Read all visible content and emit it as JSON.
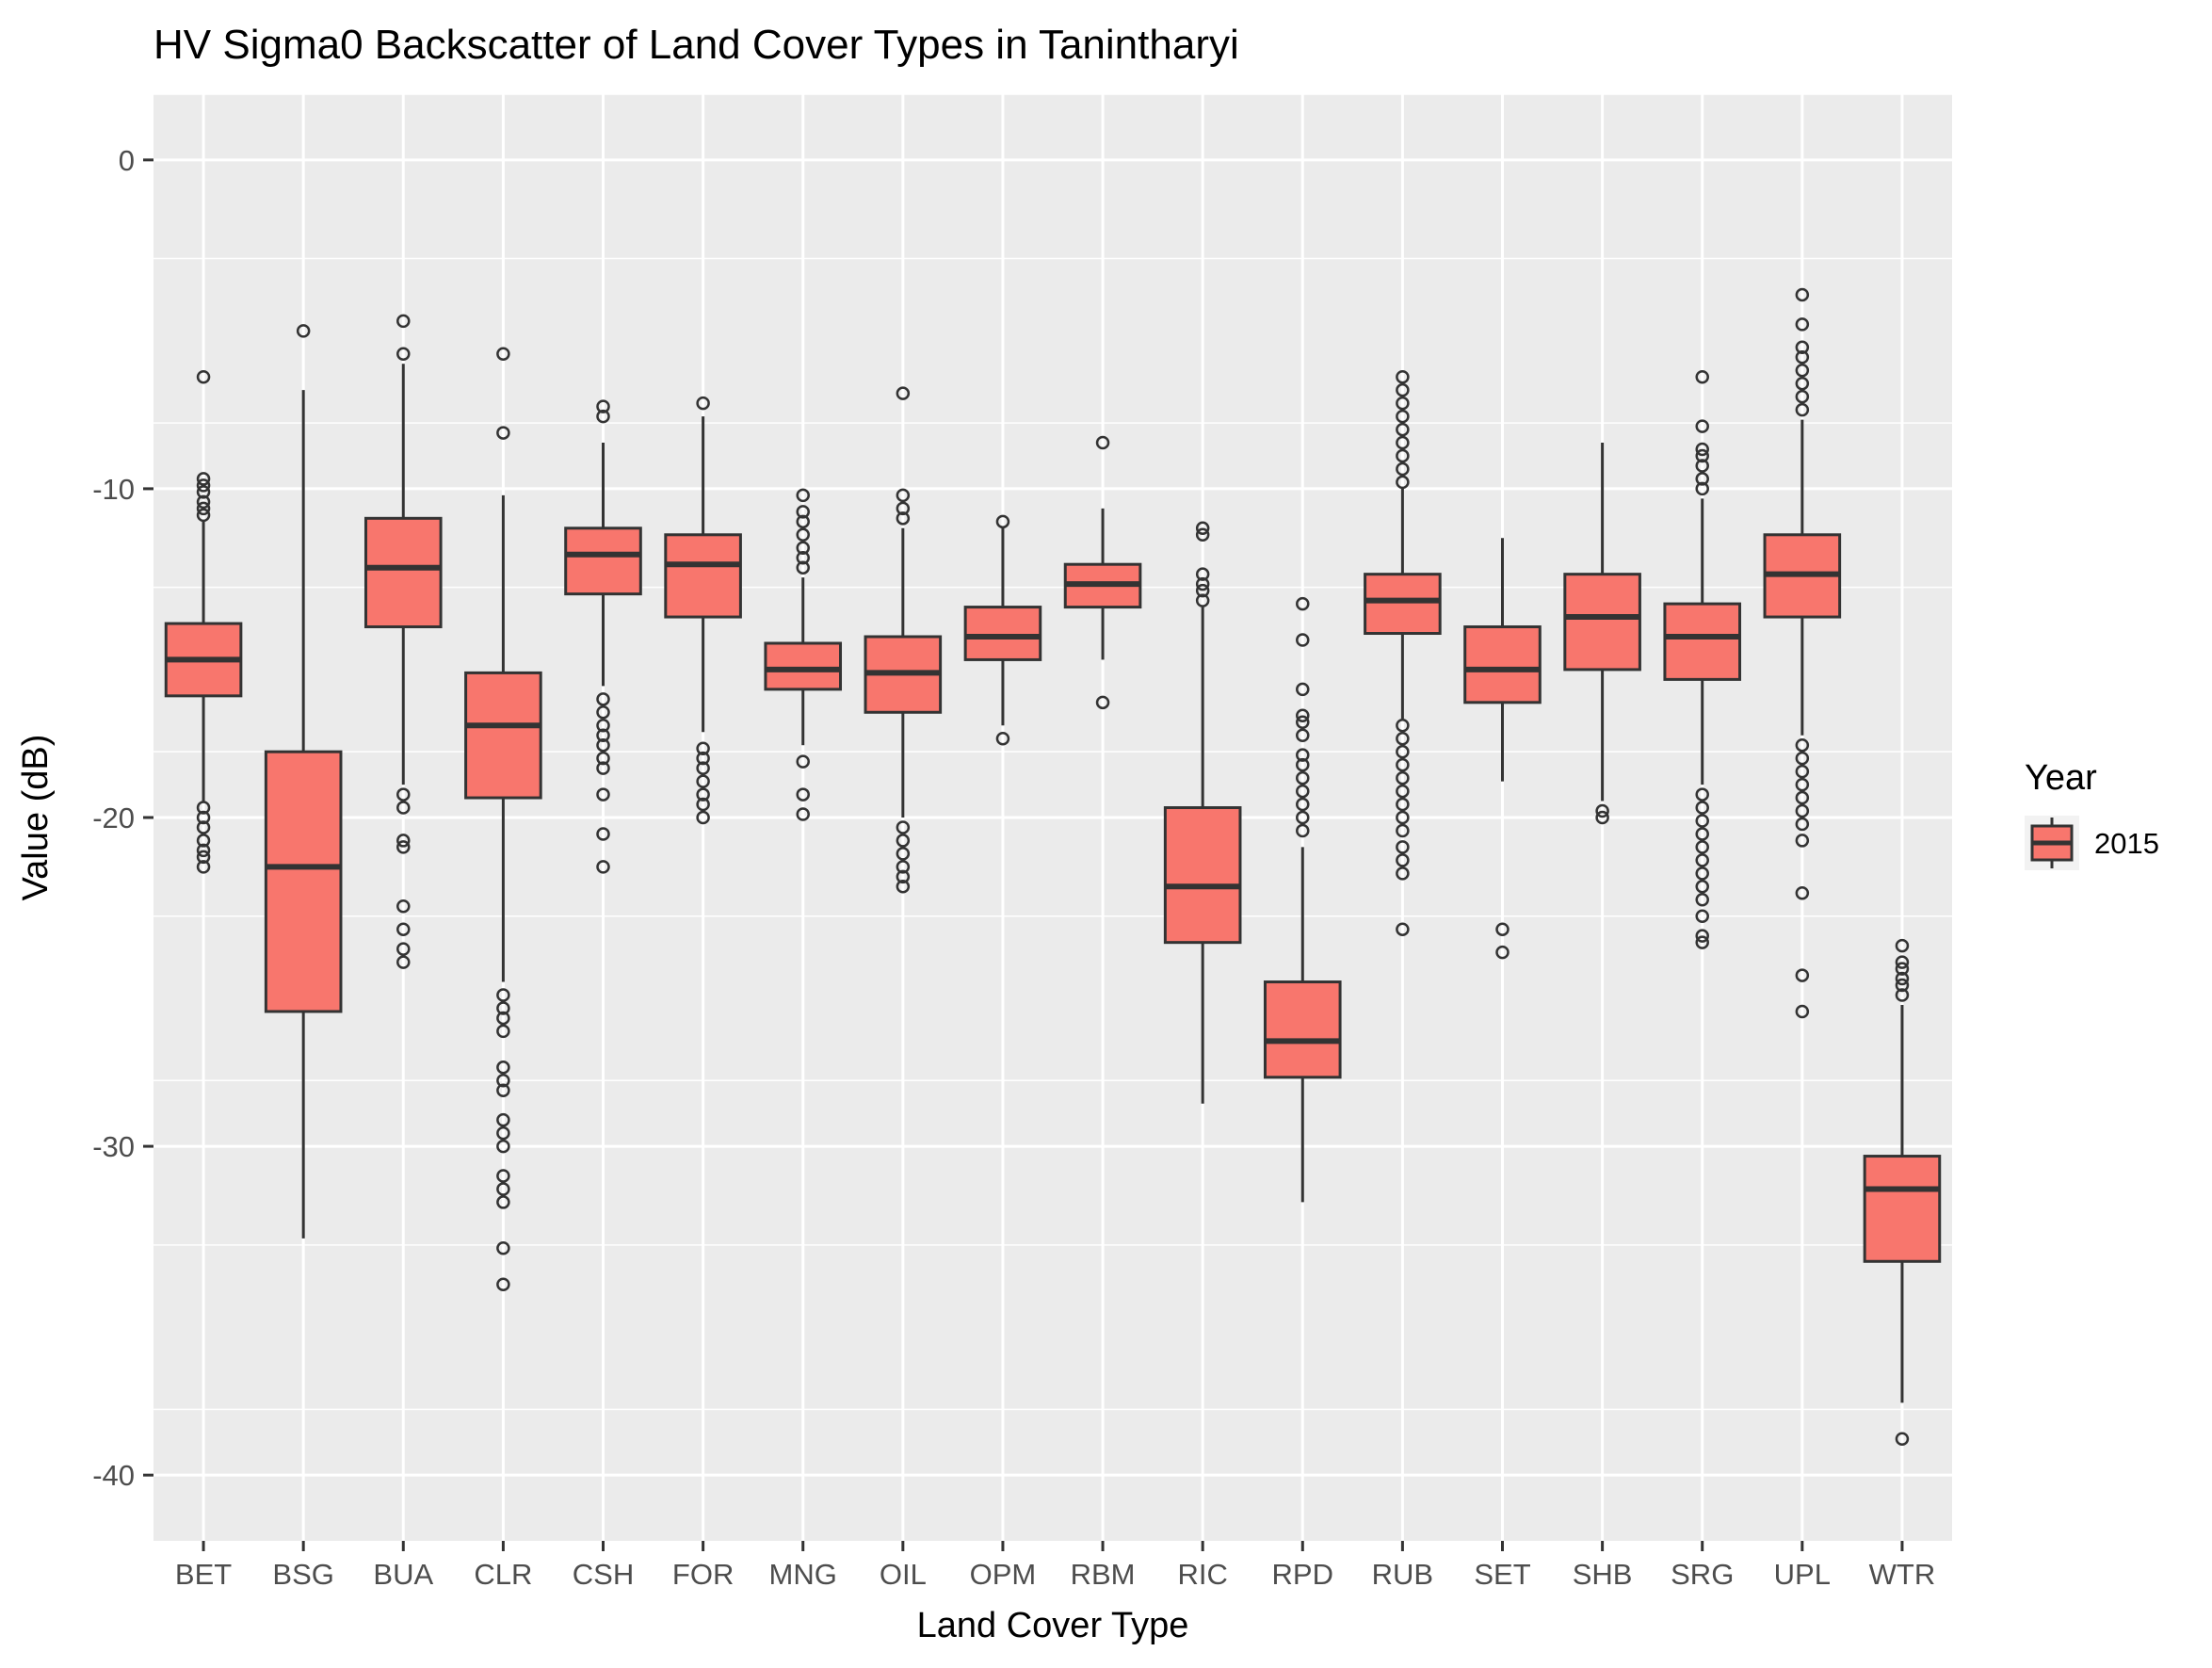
{
  "chart_data": {
    "type": "boxplot",
    "title": "HV Sigma0 Backscatter of Land Cover Types in Tanintharyi",
    "xlabel": "Land Cover Type",
    "ylabel": "Value (dB)",
    "ylim": [
      -42,
      2
    ],
    "yticks": [
      0,
      -10,
      -20,
      -30,
      -40
    ],
    "grid": true,
    "legend": {
      "title": "Year",
      "position": "right",
      "items": [
        "2015"
      ]
    },
    "colors": {
      "fill": "#F8766D",
      "panel": "#EBEBEB",
      "line": "#333333"
    },
    "series": [
      {
        "name": "2015",
        "boxes": [
          {
            "category": "BET",
            "lower_whisker": -19.5,
            "q1": -16.3,
            "median": -15.2,
            "q3": -14.1,
            "upper_whisker": -11.0,
            "outliers": [
              -6.6,
              -9.7,
              -9.9,
              -10.1,
              -10.4,
              -10.6,
              -10.8,
              -19.7,
              -20.0,
              -20.3,
              -20.7,
              -21.0,
              -21.2,
              -21.5
            ]
          },
          {
            "category": "BSG",
            "lower_whisker": -32.8,
            "q1": -25.9,
            "median": -21.5,
            "q3": -18.0,
            "upper_whisker": -7.0,
            "outliers": [
              -5.2
            ]
          },
          {
            "category": "BUA",
            "lower_whisker": -19.0,
            "q1": -14.2,
            "median": -12.4,
            "q3": -10.9,
            "upper_whisker": -6.2,
            "outliers": [
              -4.9,
              -5.9,
              -19.3,
              -19.7,
              -20.7,
              -20.9,
              -22.7,
              -23.4,
              -24.0,
              -24.4
            ]
          },
          {
            "category": "CLR",
            "lower_whisker": -25.0,
            "q1": -19.4,
            "median": -17.2,
            "q3": -15.6,
            "upper_whisker": -10.2,
            "outliers": [
              -5.9,
              -8.3,
              -25.4,
              -25.8,
              -26.1,
              -26.5,
              -27.6,
              -28.0,
              -28.3,
              -29.2,
              -29.6,
              -30.0,
              -30.9,
              -31.3,
              -31.7,
              -33.1,
              -34.2
            ]
          },
          {
            "category": "CSH",
            "lower_whisker": -16.0,
            "q1": -13.2,
            "median": -12.0,
            "q3": -11.2,
            "upper_whisker": -8.6,
            "outliers": [
              -7.5,
              -7.8,
              -16.4,
              -16.8,
              -17.2,
              -17.5,
              -17.8,
              -18.2,
              -18.5,
              -19.3,
              -20.5,
              -21.5
            ]
          },
          {
            "category": "FOR",
            "lower_whisker": -17.4,
            "q1": -13.9,
            "median": -12.3,
            "q3": -11.4,
            "upper_whisker": -7.8,
            "outliers": [
              -7.4,
              -17.9,
              -18.2,
              -18.5,
              -18.9,
              -19.3,
              -19.6,
              -20.0
            ]
          },
          {
            "category": "MNG",
            "lower_whisker": -17.8,
            "q1": -16.1,
            "median": -15.5,
            "q3": -14.7,
            "upper_whisker": -12.7,
            "outliers": [
              -10.2,
              -10.7,
              -11.0,
              -11.4,
              -11.8,
              -12.1,
              -12.4,
              -18.3,
              -19.3,
              -19.9
            ]
          },
          {
            "category": "OIL",
            "lower_whisker": -20.0,
            "q1": -16.8,
            "median": -15.6,
            "q3": -14.5,
            "upper_whisker": -11.2,
            "outliers": [
              -7.1,
              -10.2,
              -10.6,
              -10.9,
              -20.3,
              -20.7,
              -21.1,
              -21.5,
              -21.8,
              -22.1
            ]
          },
          {
            "category": "OPM",
            "lower_whisker": -17.2,
            "q1": -15.2,
            "median": -14.5,
            "q3": -13.6,
            "upper_whisker": -11.2,
            "outliers": [
              -11.0,
              -17.6
            ]
          },
          {
            "category": "RBM",
            "lower_whisker": -15.2,
            "q1": -13.6,
            "median": -12.9,
            "q3": -12.3,
            "upper_whisker": -10.6,
            "outliers": [
              -8.6,
              -16.5
            ]
          },
          {
            "category": "RIC",
            "lower_whisker": -28.7,
            "q1": -23.8,
            "median": -22.1,
            "q3": -19.7,
            "upper_whisker": -13.6,
            "outliers": [
              -11.2,
              -11.4,
              -12.6,
              -12.9,
              -13.1,
              -13.4
            ]
          },
          {
            "category": "RPD",
            "lower_whisker": -31.7,
            "q1": -27.9,
            "median": -26.8,
            "q3": -25.0,
            "upper_whisker": -20.9,
            "outliers": [
              -13.5,
              -14.6,
              -16.1,
              -16.9,
              -17.1,
              -17.5,
              -18.1,
              -18.4,
              -18.8,
              -19.2,
              -19.6,
              -20.0,
              -20.4
            ]
          },
          {
            "category": "RUB",
            "lower_whisker": -17.0,
            "q1": -14.4,
            "median": -13.4,
            "q3": -12.6,
            "upper_whisker": -10.0,
            "outliers": [
              -6.6,
              -7.0,
              -7.4,
              -7.8,
              -8.2,
              -8.6,
              -9.0,
              -9.4,
              -9.8,
              -17.2,
              -17.6,
              -18.0,
              -18.4,
              -18.8,
              -19.2,
              -19.6,
              -20.0,
              -20.4,
              -20.9,
              -21.3,
              -21.7,
              -23.4
            ]
          },
          {
            "category": "SET",
            "lower_whisker": -18.9,
            "q1": -16.5,
            "median": -15.5,
            "q3": -14.2,
            "upper_whisker": -11.5,
            "outliers": [
              -23.4,
              -24.1
            ]
          },
          {
            "category": "SHB",
            "lower_whisker": -19.5,
            "q1": -15.5,
            "median": -13.9,
            "q3": -12.6,
            "upper_whisker": -8.6,
            "outliers": [
              -19.8,
              -20.0
            ]
          },
          {
            "category": "SRG",
            "lower_whisker": -19.0,
            "q1": -15.8,
            "median": -14.5,
            "q3": -13.5,
            "upper_whisker": -10.3,
            "outliers": [
              -6.6,
              -8.1,
              -8.8,
              -9.0,
              -9.3,
              -9.7,
              -10.0,
              -19.3,
              -19.7,
              -20.1,
              -20.5,
              -20.9,
              -21.3,
              -21.7,
              -22.1,
              -22.5,
              -23.0,
              -23.6,
              -23.8
            ]
          },
          {
            "category": "UPL",
            "lower_whisker": -17.5,
            "q1": -13.9,
            "median": -12.6,
            "q3": -11.4,
            "upper_whisker": -7.9,
            "outliers": [
              -4.1,
              -5.0,
              -5.7,
              -6.0,
              -6.4,
              -6.8,
              -7.2,
              -7.6,
              -17.8,
              -18.2,
              -18.6,
              -19.0,
              -19.4,
              -19.8,
              -20.2,
              -20.7,
              -22.3,
              -24.8,
              -25.9
            ]
          },
          {
            "category": "WTR",
            "lower_whisker": -37.8,
            "q1": -33.5,
            "median": -31.3,
            "q3": -30.3,
            "upper_whisker": -25.7,
            "outliers": [
              -23.9,
              -24.4,
              -24.6,
              -24.9,
              -25.1,
              -25.4,
              -38.9
            ]
          }
        ]
      }
    ]
  }
}
